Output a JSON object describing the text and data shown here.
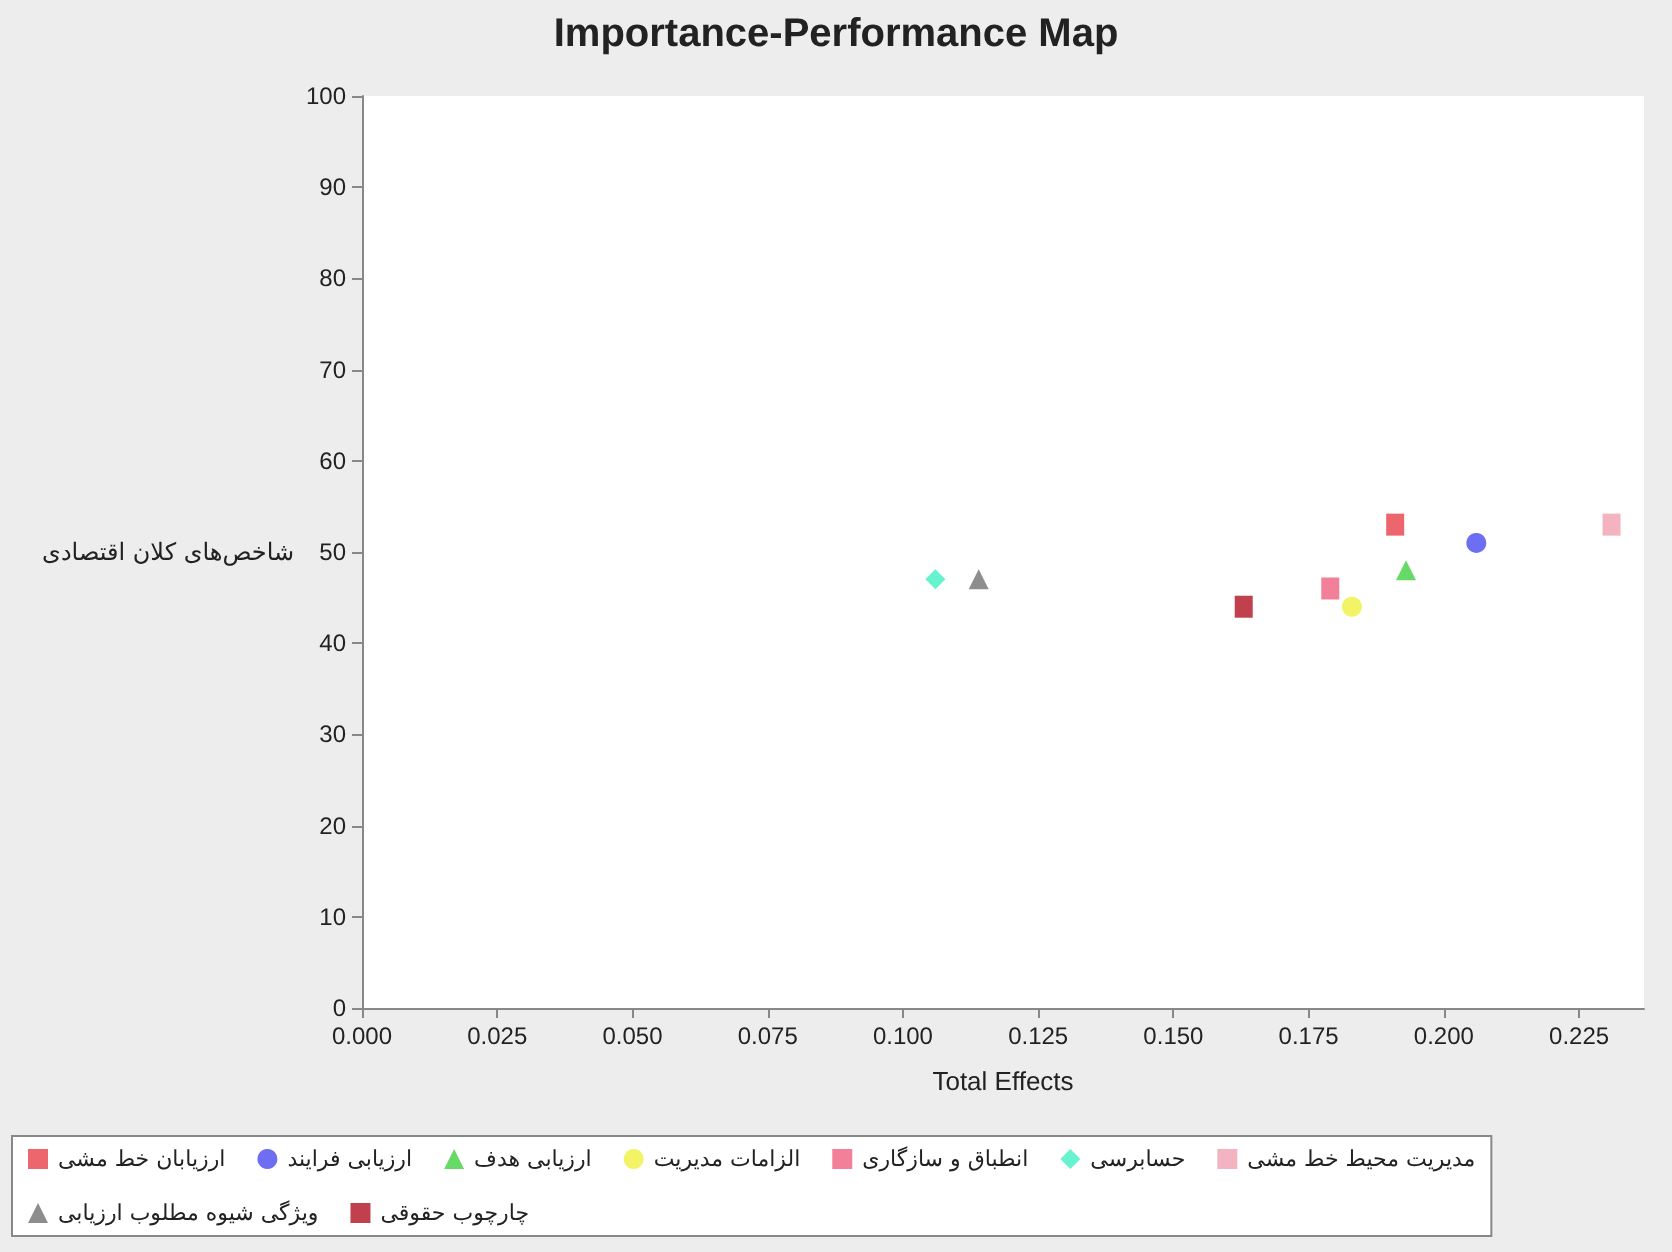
{
  "chart_data": {
    "type": "scatter",
    "title": "Importance-Performance Map",
    "xlabel": "Total Effects",
    "ylabel": "شاخص‌های کلان اقتصادی",
    "xlim": [
      0,
      0.237
    ],
    "xticks": [
      {
        "value": 0,
        "label": "0.000"
      },
      {
        "value": 0.025,
        "label": "0.025"
      },
      {
        "value": 0.05,
        "label": "0.050"
      },
      {
        "value": 0.075,
        "label": "0.075"
      },
      {
        "value": 0.1,
        "label": "0.100"
      },
      {
        "value": 0.125,
        "label": "0.125"
      },
      {
        "value": 0.15,
        "label": "0.150"
      },
      {
        "value": 0.175,
        "label": "0.175"
      },
      {
        "value": 0.2,
        "label": "0.200"
      },
      {
        "value": 0.225,
        "label": "0.225"
      }
    ],
    "ylim": [
      0,
      100
    ],
    "yticks": [
      0,
      10,
      20,
      30,
      40,
      50,
      60,
      70,
      80,
      90,
      100
    ],
    "grid": false,
    "legend": "bottom",
    "series": [
      {
        "name": "ارزیابان خط مشی",
        "color": "#e8404a",
        "marker": "square",
        "x": [
          0.191
        ],
        "values": [
          53
        ]
      },
      {
        "name": "ارزیابی فرایند",
        "color": "#4a4af0",
        "marker": "circle",
        "x": [
          0.206
        ],
        "values": [
          51
        ]
      },
      {
        "name": "ارزیابی هدف",
        "color": "#40d040",
        "marker": "triangle",
        "x": [
          0.193
        ],
        "values": [
          48
        ]
      },
      {
        "name": "الزامات مدیریت",
        "color": "#f0f040",
        "marker": "circle",
        "x": [
          0.183
        ],
        "values": [
          44
        ]
      },
      {
        "name": "انطباق و سازگاری",
        "color": "#f06080",
        "marker": "square",
        "x": [
          0.179
        ],
        "values": [
          46
        ]
      },
      {
        "name": "حسابرسی",
        "color": "#40f0c0",
        "marker": "diamond",
        "x": [
          0.106
        ],
        "values": [
          47
        ]
      },
      {
        "name": "مدیریت محیط خط مشی",
        "color": "#f0a0b0",
        "marker": "square",
        "x": [
          0.231
        ],
        "values": [
          53
        ]
      },
      {
        "name": "ویژگی شیوه مطلوب ارزیابی",
        "color": "#707070",
        "marker": "triangle",
        "x": [
          0.114
        ],
        "values": [
          47
        ]
      },
      {
        "name": "چارچوب حقوقی",
        "color": "#b01020",
        "marker": "square",
        "x": [
          0.163
        ],
        "values": [
          44
        ]
      }
    ]
  }
}
